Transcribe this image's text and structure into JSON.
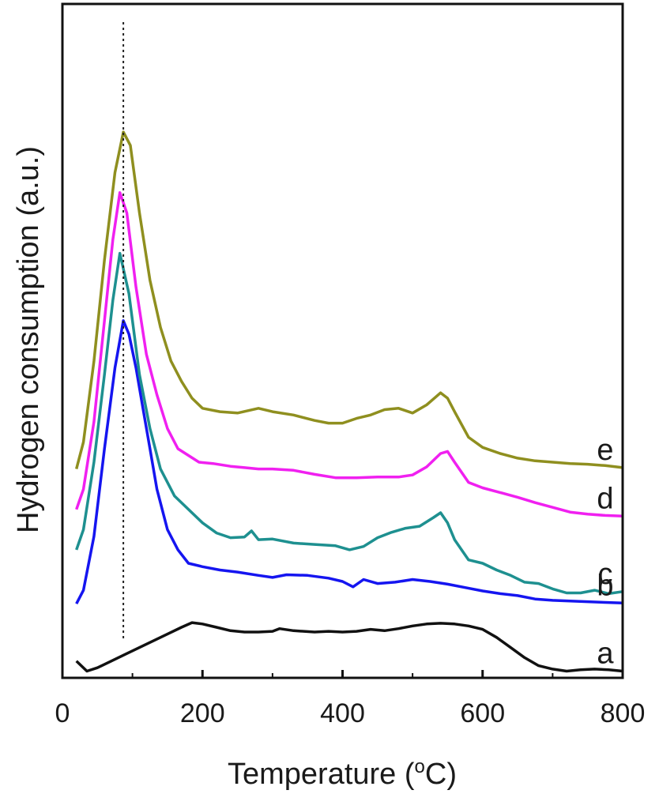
{
  "chart_data": {
    "type": "line",
    "xlabel": "Temperature (",
    "xlabel_sup": "o",
    "xlabel_unit": "C)",
    "ylabel": "Hydrogen consumption (a.u.)",
    "xlim": [
      0,
      800
    ],
    "ylim": [
      0,
      100
    ],
    "xticks": [
      "0",
      "200",
      "400",
      "600",
      "800"
    ],
    "xtick_values": [
      0,
      200,
      400,
      600,
      800
    ],
    "yticks_visible": false,
    "grid": false,
    "reference_line": {
      "x": 87,
      "style": "dotted"
    },
    "series": [
      {
        "name": "a",
        "color": "#111111",
        "x": [
          20,
          35,
          50,
          70,
          90,
          110,
          130,
          150,
          170,
          185,
          200,
          220,
          240,
          260,
          280,
          300,
          310,
          330,
          360,
          380,
          400,
          420,
          440,
          460,
          480,
          500,
          520,
          540,
          560,
          580,
          600,
          620,
          640,
          660,
          680,
          700,
          720,
          740,
          760,
          780,
          800
        ],
        "y": [
          2.5,
          1.0,
          1.5,
          2.5,
          3.5,
          4.5,
          5.5,
          6.5,
          7.5,
          8.2,
          8.0,
          7.5,
          7.0,
          6.8,
          6.8,
          6.9,
          7.3,
          7.0,
          6.8,
          6.9,
          6.8,
          6.9,
          7.2,
          7.0,
          7.3,
          7.7,
          8.0,
          8.1,
          8.0,
          7.7,
          7.2,
          6.0,
          4.5,
          3.0,
          1.8,
          1.3,
          1.0,
          1.2,
          1.3,
          1.2,
          1.0
        ]
      },
      {
        "name": "b",
        "color": "#1515f0",
        "x": [
          20,
          30,
          45,
          60,
          75,
          87,
          95,
          105,
          115,
          125,
          135,
          150,
          165,
          180,
          200,
          225,
          250,
          280,
          300,
          320,
          350,
          380,
          400,
          415,
          430,
          450,
          475,
          500,
          525,
          550,
          575,
          600,
          625,
          650,
          675,
          700,
          725,
          750,
          775,
          800
        ],
        "y": [
          11,
          13,
          21,
          34,
          46,
          53,
          51,
          46,
          40,
          34,
          28,
          22,
          19,
          17,
          16.5,
          16,
          15.7,
          15.2,
          14.9,
          15.3,
          15.2,
          14.8,
          14.3,
          13.5,
          14.6,
          14.0,
          14.2,
          14.6,
          14.3,
          13.9,
          13.4,
          12.9,
          12.5,
          12.2,
          11.7,
          11.5,
          11.4,
          11.3,
          11.2,
          11.1
        ]
      },
      {
        "name": "c",
        "color": "#1e9090",
        "x": [
          20,
          30,
          45,
          60,
          72,
          82,
          95,
          110,
          125,
          140,
          160,
          180,
          200,
          220,
          240,
          260,
          270,
          280,
          300,
          330,
          360,
          390,
          410,
          430,
          450,
          470,
          490,
          510,
          530,
          540,
          550,
          560,
          580,
          600,
          620,
          640,
          660,
          680,
          700,
          720,
          740,
          760,
          780,
          800
        ],
        "y": [
          19,
          22,
          32,
          45,
          56,
          63,
          57,
          45,
          37,
          31,
          27,
          25,
          23,
          21.5,
          20.8,
          20.9,
          21.8,
          20.5,
          20.6,
          20.0,
          19.8,
          19.6,
          19.0,
          19.5,
          20.8,
          21.6,
          22.2,
          22.5,
          23.8,
          24.5,
          23.0,
          20.5,
          17.5,
          17.0,
          16.0,
          15.2,
          14.2,
          14.0,
          13.2,
          12.6,
          12.6,
          13.0,
          12.5,
          12.8
        ]
      },
      {
        "name": "d",
        "color": "#f020f0",
        "x": [
          20,
          30,
          45,
          60,
          72,
          82,
          92,
          105,
          120,
          135,
          150,
          165,
          180,
          195,
          215,
          240,
          260,
          280,
          300,
          330,
          360,
          390,
          420,
          450,
          480,
          500,
          520,
          540,
          550,
          560,
          580,
          600,
          625,
          650,
          675,
          700,
          725,
          750,
          775,
          800
        ],
        "y": [
          25,
          28,
          38,
          53,
          65,
          72,
          69,
          58,
          48,
          42,
          37,
          34,
          33,
          32,
          31.8,
          31.4,
          31.2,
          31.0,
          31.0,
          30.8,
          30.2,
          29.7,
          29.7,
          29.8,
          29.8,
          30.1,
          31.3,
          33.3,
          33.6,
          32.0,
          29.0,
          28.2,
          27.5,
          26.8,
          26.0,
          25.3,
          24.6,
          24.3,
          24.1,
          24.0
        ]
      },
      {
        "name": "e",
        "color": "#8f8f1f",
        "x": [
          20,
          30,
          45,
          60,
          75,
          87,
          97,
          110,
          125,
          140,
          155,
          170,
          185,
          200,
          225,
          250,
          280,
          300,
          330,
          360,
          380,
          400,
          420,
          440,
          460,
          480,
          500,
          520,
          540,
          550,
          560,
          580,
          600,
          625,
          650,
          675,
          700,
          725,
          750,
          775,
          800
        ],
        "y": [
          31,
          35,
          47,
          62,
          75,
          81,
          79,
          69,
          59,
          52,
          47,
          44,
          41.5,
          40.0,
          39.5,
          39.3,
          40.0,
          39.5,
          39.0,
          38.2,
          37.8,
          37.8,
          38.5,
          39.0,
          39.8,
          40.0,
          39.3,
          40.5,
          42.3,
          41.5,
          39.5,
          35.7,
          34.2,
          33.3,
          32.6,
          32.2,
          32.0,
          31.8,
          31.7,
          31.5,
          31.2
        ]
      }
    ]
  }
}
